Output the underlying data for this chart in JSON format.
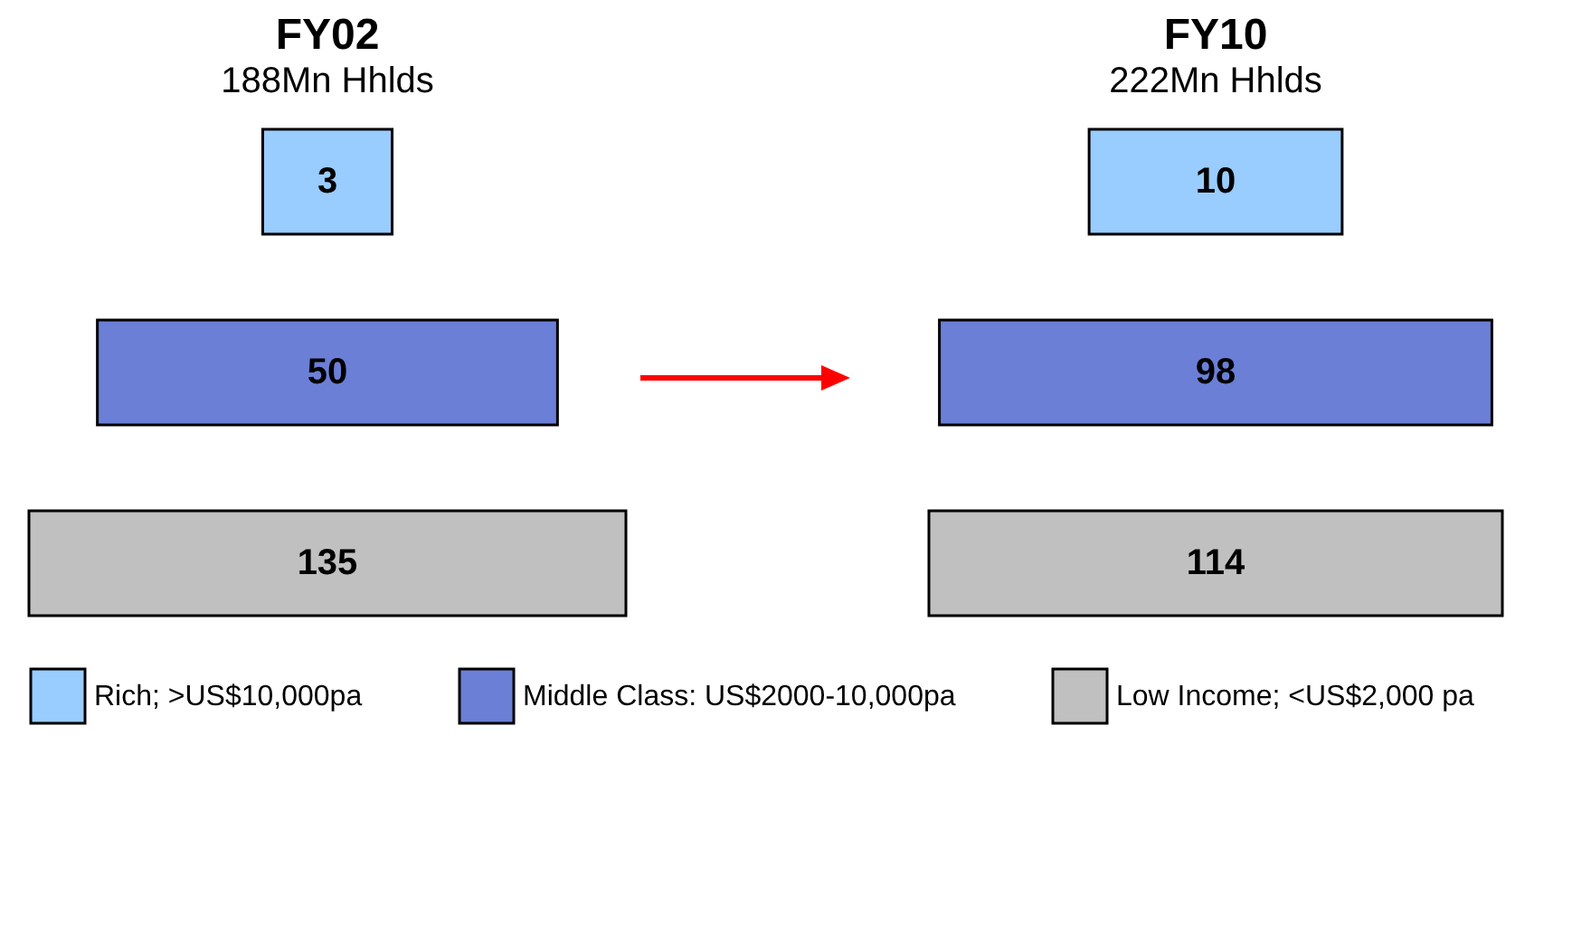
{
  "chart_data": {
    "type": "other",
    "categories": [
      "FY02",
      "FY10"
    ],
    "series": [
      {
        "name": "Rich; >US$10,000pa",
        "color": "#99ccff",
        "values": [
          3,
          10
        ]
      },
      {
        "name": "Middle Class: US$2000-10,000pa",
        "color": "#6b7fd7",
        "values": [
          50,
          98
        ]
      },
      {
        "name": "Low Income; <US$2,000 pa",
        "color": "#c0c0c0",
        "values": [
          135,
          114
        ]
      }
    ],
    "annotations": [
      "188Mn Hhlds",
      "222Mn Hhlds"
    ],
    "data_labels": true,
    "legend": "bottom"
  }
}
